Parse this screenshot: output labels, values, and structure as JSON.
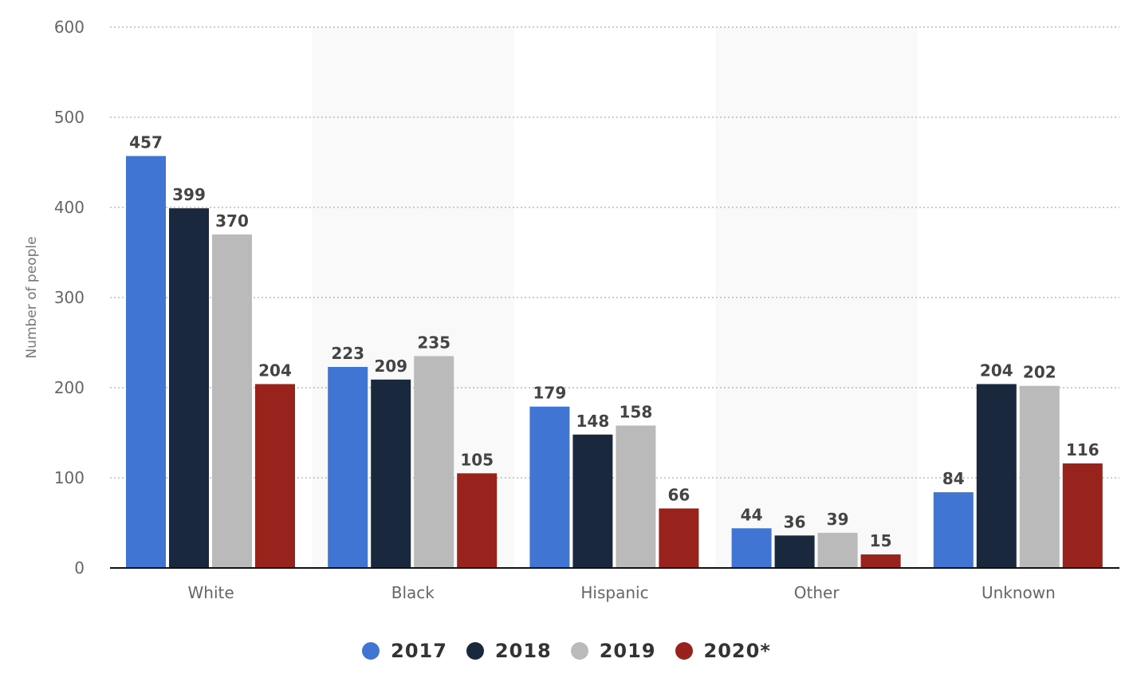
{
  "chart_data": {
    "type": "bar",
    "title": "",
    "xlabel": "",
    "ylabel": "Number of people",
    "ylim": [
      0,
      600
    ],
    "yticks": [
      0,
      100,
      200,
      300,
      400,
      500,
      600
    ],
    "grid": true,
    "legend_position": "bottom-center",
    "categories": [
      "White",
      "Black",
      "Hispanic",
      "Other",
      "Unknown"
    ],
    "series": [
      {
        "name": "2017",
        "color": "#4175d3",
        "values": [
          457,
          223,
          179,
          44,
          84
        ]
      },
      {
        "name": "2018",
        "color": "#19283d",
        "values": [
          399,
          209,
          148,
          36,
          204
        ]
      },
      {
        "name": "2019",
        "color": "#bababa",
        "values": [
          370,
          235,
          158,
          39,
          202
        ]
      },
      {
        "name": "2020*",
        "color": "#98221c",
        "values": [
          204,
          105,
          66,
          15,
          116
        ]
      }
    ]
  }
}
